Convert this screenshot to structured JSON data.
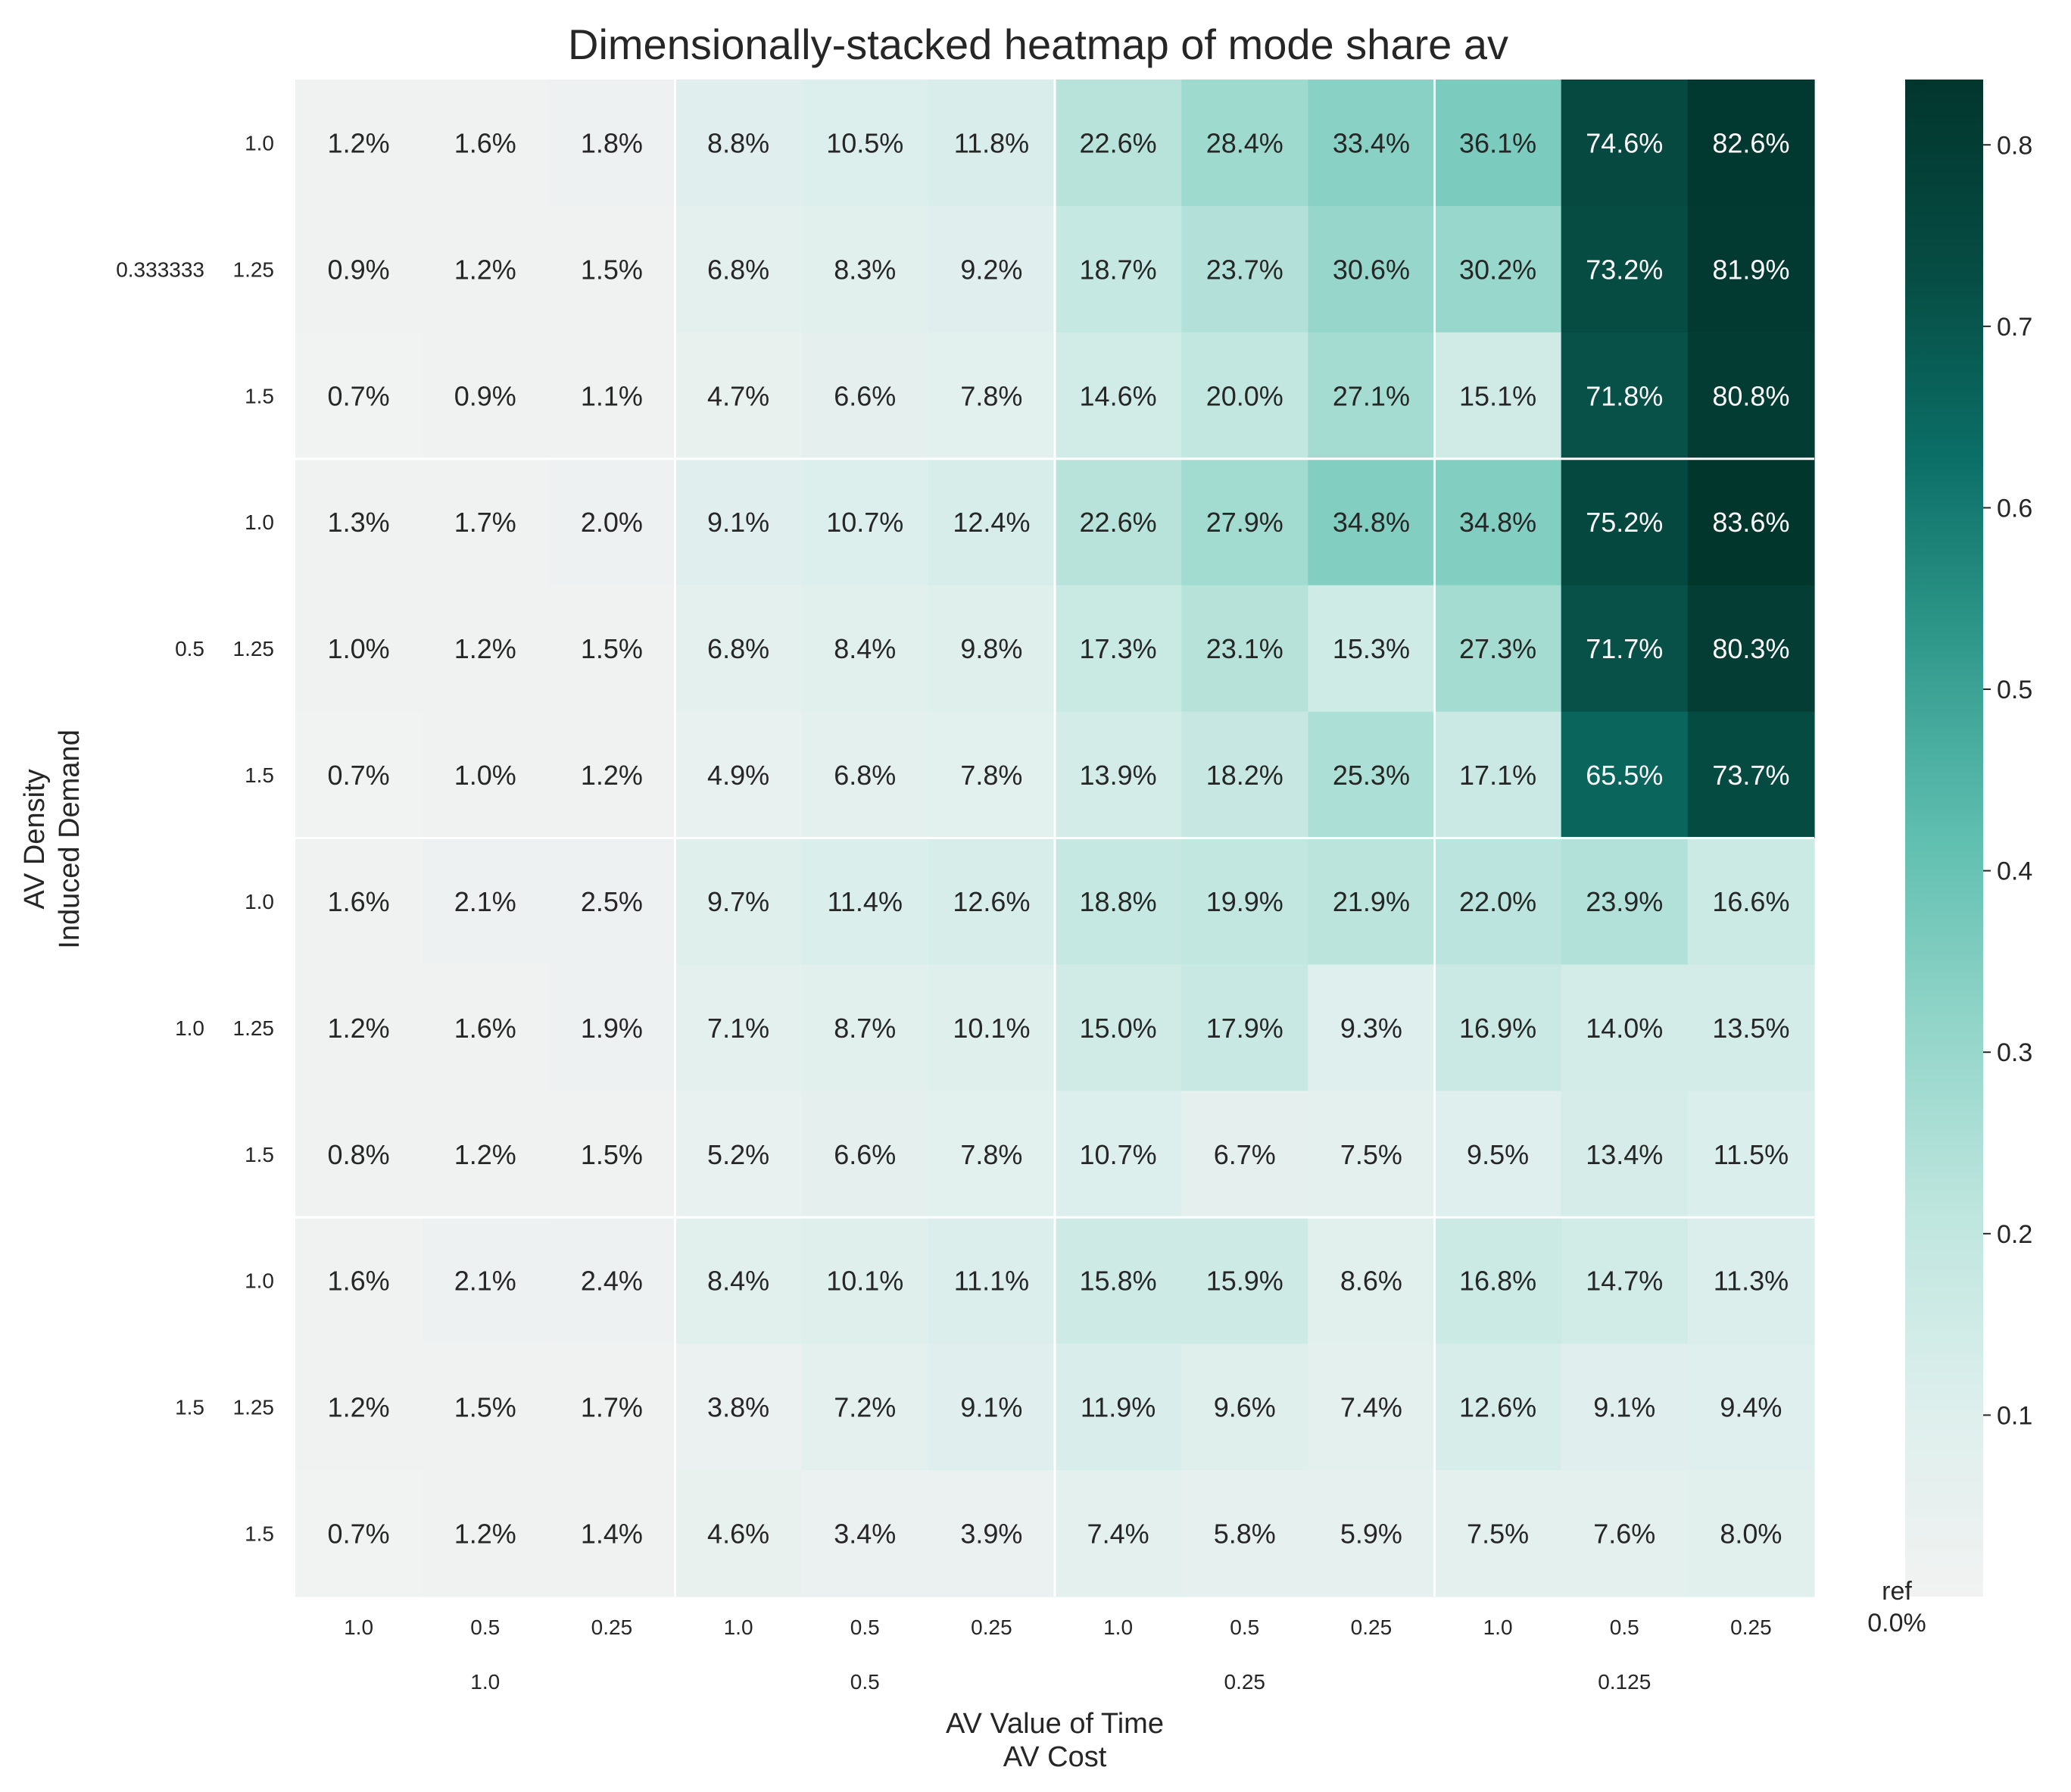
{
  "chart_data": {
    "type": "heatmap",
    "title": "Dimensionally-stacked heatmap of mode share av",
    "xlabel": [
      "AV Value of Time",
      "AV Cost"
    ],
    "ylabel": [
      "AV Density",
      "Induced Demand"
    ],
    "x_outer": [
      "1.0",
      "0.5",
      "0.25",
      "0.125"
    ],
    "x_inner": [
      "1.0",
      "0.5",
      "0.25"
    ],
    "y_outer": [
      "0.333333",
      "0.5",
      "1.0",
      "1.5"
    ],
    "y_inner": [
      "1.0",
      "1.25",
      "1.5"
    ],
    "values": [
      [
        0.012,
        0.016,
        0.018,
        0.088,
        0.105,
        0.118,
        0.226,
        0.284,
        0.334,
        0.361,
        0.746,
        0.826
      ],
      [
        0.009,
        0.012,
        0.015,
        0.068,
        0.083,
        0.092,
        0.187,
        0.237,
        0.306,
        0.302,
        0.732,
        0.819
      ],
      [
        0.007,
        0.009,
        0.011,
        0.047,
        0.066,
        0.078,
        0.146,
        0.2,
        0.271,
        0.151,
        0.718,
        0.808
      ],
      [
        0.013,
        0.017,
        0.02,
        0.091,
        0.107,
        0.124,
        0.226,
        0.279,
        0.348,
        0.348,
        0.752,
        0.836
      ],
      [
        0.01,
        0.012,
        0.015,
        0.068,
        0.084,
        0.098,
        0.173,
        0.231,
        0.153,
        0.273,
        0.717,
        0.803
      ],
      [
        0.007,
        0.01,
        0.012,
        0.049,
        0.068,
        0.078,
        0.139,
        0.182,
        0.253,
        0.171,
        0.655,
        0.737
      ],
      [
        0.016,
        0.021,
        0.025,
        0.097,
        0.114,
        0.126,
        0.188,
        0.199,
        0.219,
        0.22,
        0.239,
        0.166
      ],
      [
        0.012,
        0.016,
        0.019,
        0.071,
        0.087,
        0.101,
        0.15,
        0.179,
        0.093,
        0.169,
        0.14,
        0.135
      ],
      [
        0.008,
        0.012,
        0.015,
        0.052,
        0.066,
        0.078,
        0.107,
        0.067,
        0.075,
        0.095,
        0.134,
        0.115
      ],
      [
        0.016,
        0.021,
        0.024,
        0.084,
        0.101,
        0.111,
        0.158,
        0.159,
        0.086,
        0.168,
        0.147,
        0.113
      ],
      [
        0.012,
        0.015,
        0.017,
        0.038,
        0.072,
        0.091,
        0.119,
        0.096,
        0.074,
        0.126,
        0.091,
        0.094
      ],
      [
        0.007,
        0.012,
        0.014,
        0.046,
        0.034,
        0.039,
        0.074,
        0.058,
        0.059,
        0.075,
        0.076,
        0.08
      ]
    ],
    "cell_labels": [
      [
        "1.2%",
        "1.6%",
        "1.8%",
        "8.8%",
        "10.5%",
        "11.8%",
        "22.6%",
        "28.4%",
        "33.4%",
        "36.1%",
        "74.6%",
        "82.6%"
      ],
      [
        "0.9%",
        "1.2%",
        "1.5%",
        "6.8%",
        "8.3%",
        "9.2%",
        "18.7%",
        "23.7%",
        "30.6%",
        "30.2%",
        "73.2%",
        "81.9%"
      ],
      [
        "0.7%",
        "0.9%",
        "1.1%",
        "4.7%",
        "6.6%",
        "7.8%",
        "14.6%",
        "20.0%",
        "27.1%",
        "15.1%",
        "71.8%",
        "80.8%"
      ],
      [
        "1.3%",
        "1.7%",
        "2.0%",
        "9.1%",
        "10.7%",
        "12.4%",
        "22.6%",
        "27.9%",
        "34.8%",
        "34.8%",
        "75.2%",
        "83.6%"
      ],
      [
        "1.0%",
        "1.2%",
        "1.5%",
        "6.8%",
        "8.4%",
        "9.8%",
        "17.3%",
        "23.1%",
        "15.3%",
        "27.3%",
        "71.7%",
        "80.3%"
      ],
      [
        "0.7%",
        "1.0%",
        "1.2%",
        "4.9%",
        "6.8%",
        "7.8%",
        "13.9%",
        "18.2%",
        "25.3%",
        "17.1%",
        "65.5%",
        "73.7%"
      ],
      [
        "1.6%",
        "2.1%",
        "2.5%",
        "9.7%",
        "11.4%",
        "12.6%",
        "18.8%",
        "19.9%",
        "21.9%",
        "22.0%",
        "23.9%",
        "16.6%"
      ],
      [
        "1.2%",
        "1.6%",
        "1.9%",
        "7.1%",
        "8.7%",
        "10.1%",
        "15.0%",
        "17.9%",
        "9.3%",
        "16.9%",
        "14.0%",
        "13.5%"
      ],
      [
        "0.8%",
        "1.2%",
        "1.5%",
        "5.2%",
        "6.6%",
        "7.8%",
        "10.7%",
        "6.7%",
        "7.5%",
        "9.5%",
        "13.4%",
        "11.5%"
      ],
      [
        "1.6%",
        "2.1%",
        "2.4%",
        "8.4%",
        "10.1%",
        "11.1%",
        "15.8%",
        "15.9%",
        "8.6%",
        "16.8%",
        "14.7%",
        "11.3%"
      ],
      [
        "1.2%",
        "1.5%",
        "1.7%",
        "3.8%",
        "7.2%",
        "9.1%",
        "11.9%",
        "9.6%",
        "7.4%",
        "12.6%",
        "9.1%",
        "9.4%"
      ],
      [
        "0.7%",
        "1.2%",
        "1.4%",
        "4.6%",
        "3.4%",
        "3.9%",
        "7.4%",
        "5.8%",
        "5.9%",
        "7.5%",
        "7.6%",
        "8.0%"
      ]
    ],
    "colorbar": {
      "range": [
        0.0,
        0.836
      ],
      "ticks": [
        0.1,
        0.2,
        0.3,
        0.4,
        0.5,
        0.6,
        0.7,
        0.8
      ],
      "tick_labels": [
        "0.1",
        "0.2",
        "0.3",
        "0.4",
        "0.5",
        "0.6",
        "0.7",
        "0.8"
      ],
      "ref_label": "ref",
      "ref_value_label": "0.0%"
    },
    "colormap": [
      "#f2f2f2",
      "#ddefec",
      "#bfe6df",
      "#93d5c9",
      "#5fbfb0",
      "#329a8d",
      "#0b6f67",
      "#064c43",
      "#01362d"
    ],
    "grid": false
  }
}
